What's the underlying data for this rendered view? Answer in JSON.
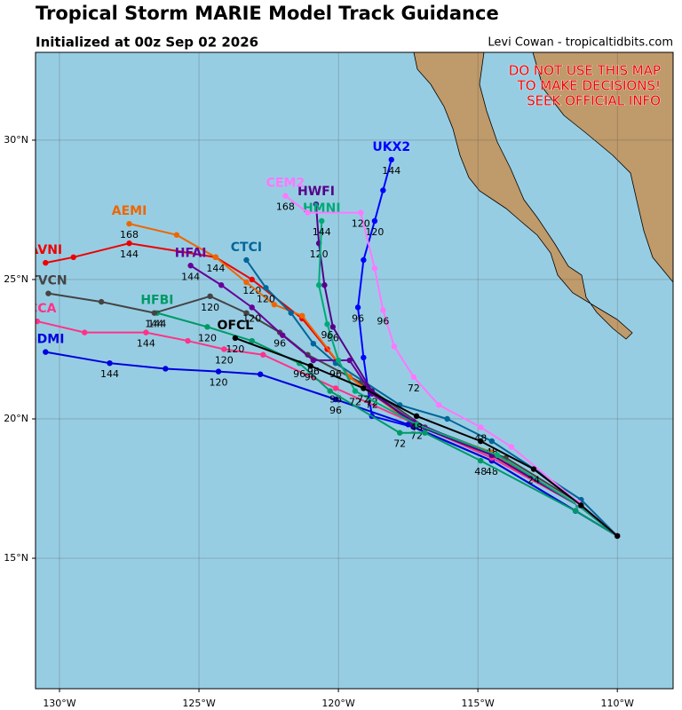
{
  "chart_data": {
    "type": "map",
    "title": "Tropical Storm MARIE Model Track Guidance",
    "subtitle": "Initialized at 00z Sep 02 2026",
    "credit": "Levi Cowan - tropicaltidbits.com",
    "annotation_lines": [
      "DO NOT USE THIS MAP",
      "TO MAKE DECISIONS!",
      "SEEK OFFICIAL INFO"
    ],
    "xlim": [
      -130.86,
      -108
    ],
    "ylim": [
      10.32,
      33.15
    ],
    "xticks": [
      {
        "value": -130,
        "label": "130°W"
      },
      {
        "value": -125,
        "label": "125°W"
      },
      {
        "value": -120,
        "label": "120°W"
      },
      {
        "value": -115,
        "label": "115°W"
      },
      {
        "value": -110,
        "label": "110°W"
      }
    ],
    "yticks": [
      {
        "value": 15,
        "label": "15°N"
      },
      {
        "value": 20,
        "label": "20°N"
      },
      {
        "value": 25,
        "label": "25°N"
      },
      {
        "value": 30,
        "label": "30°N"
      }
    ],
    "grid": true,
    "series": [
      {
        "name": "UKX2",
        "color": "#0000ff",
        "x": [
          -110,
          -111.5,
          -114.5,
          -117.3,
          -118.8,
          -119.1,
          -119.3,
          -119.1,
          -118.7,
          -118.4,
          -118.1
        ],
        "y": [
          15.8,
          16.7,
          18.5,
          19.7,
          20.1,
          22.2,
          24.0,
          25.7,
          27.1,
          28.2,
          29.3
        ],
        "labels": [
          null,
          null,
          null,
          null,
          null,
          null,
          96,
          null,
          120,
          null,
          144
        ]
      },
      {
        "name": "GDMI",
        "color": "#0000dd",
        "x": [
          -110,
          -111.5,
          -114.5,
          -117.5,
          -120.1,
          -122.8,
          -124.3,
          -126.2,
          -128.2,
          -130.5
        ],
        "y": [
          15.8,
          16.7,
          18.5,
          19.8,
          20.7,
          21.6,
          21.7,
          21.8,
          22.0,
          22.4
        ],
        "labels": [
          null,
          null,
          48,
          null,
          96,
          null,
          120,
          null,
          144,
          null
        ]
      },
      {
        "name": "HCCA",
        "color": "#ff3388",
        "x": [
          -110,
          -111.4,
          -114.5,
          -117.2,
          -120.1,
          -122.7,
          -124.1,
          -125.4,
          -126.9,
          -129.1,
          -130.8
        ],
        "y": [
          15.8,
          16.9,
          18.6,
          19.8,
          21.1,
          22.3,
          22.5,
          22.8,
          23.1,
          23.1,
          23.5
        ],
        "labels": [
          null,
          null,
          null,
          72,
          96,
          null,
          120,
          null,
          144,
          null,
          null
        ]
      },
      {
        "name": "HFBI",
        "color": "#009966",
        "x": [
          -110,
          -111.5,
          -114.9,
          -116.9,
          -117.8,
          -120.3,
          -121.4,
          -123.1,
          -124.7,
          -126.5
        ],
        "y": [
          15.8,
          16.7,
          18.5,
          19.5,
          19.5,
          21.0,
          22.0,
          22.8,
          23.3,
          23.8
        ],
        "labels": [
          null,
          null,
          48,
          null,
          72,
          null,
          96,
          null,
          120,
          144
        ]
      },
      {
        "name": "TVCN",
        "color": "#444444",
        "x": [
          -110,
          -111.4,
          -114.0,
          -116.9,
          -119.2,
          -121.1,
          -122.1,
          -123.3,
          -124.6,
          -126.6,
          -128.5,
          -130.4
        ],
        "y": [
          15.8,
          17.0,
          18.6,
          19.7,
          21.3,
          22.3,
          23.1,
          23.8,
          24.4,
          23.8,
          24.2,
          24.5
        ],
        "labels": [
          null,
          null,
          null,
          null,
          null,
          null,
          96,
          null,
          120,
          144,
          null,
          null
        ]
      },
      {
        "name": "AVNI",
        "color": "#ee0000",
        "x": [
          -110,
          -111.4,
          -114.5,
          -117.3,
          -119.6,
          -120.4,
          -121.3,
          -123.1,
          -124.4,
          -127.5,
          -129.5,
          -130.5
        ],
        "y": [
          15.8,
          16.9,
          18.8,
          19.8,
          21.5,
          22.5,
          23.6,
          25.0,
          25.8,
          26.3,
          25.8,
          25.6
        ],
        "labels": [
          null,
          null,
          null,
          null,
          null,
          null,
          null,
          120,
          null,
          144,
          null,
          null
        ]
      },
      {
        "name": "AEMI",
        "color": "#ee6600",
        "x": [
          -110,
          -111.4,
          -114.5,
          -117.3,
          -119.6,
          -121.3,
          -122.3,
          -123.3,
          -124.4,
          -125.8,
          -127.5
        ],
        "y": [
          15.8,
          16.9,
          18.8,
          19.8,
          21.5,
          23.7,
          24.1,
          24.9,
          25.8,
          26.6,
          27.0
        ],
        "labels": [
          null,
          null,
          null,
          null,
          null,
          null,
          null,
          null,
          144,
          null,
          168
        ]
      },
      {
        "name": "CTCI",
        "color": "#006699",
        "x": [
          -110,
          -111.3,
          -114.5,
          -116.1,
          -117.8,
          -120.1,
          -120.9,
          -121.7,
          -122.6,
          -123.3
        ],
        "y": [
          15.8,
          17.1,
          19.2,
          20.0,
          20.5,
          22.0,
          22.7,
          23.8,
          24.7,
          25.7
        ],
        "labels": [
          null,
          null,
          48,
          null,
          null,
          96,
          null,
          null,
          120,
          null
        ]
      },
      {
        "name": "HFAI",
        "color": "#660099",
        "x": [
          -110,
          -111.4,
          -114.5,
          -117.3,
          -118.8,
          -119.6,
          -120.9,
          -122.0,
          -123.1,
          -124.2,
          -125.3
        ],
        "y": [
          15.8,
          16.9,
          18.7,
          19.9,
          20.9,
          22.1,
          22.1,
          23.0,
          24.0,
          24.8,
          25.5
        ],
        "labels": [
          null,
          null,
          null,
          null,
          72,
          null,
          96,
          null,
          120,
          null,
          144
        ]
      },
      {
        "name": "HWFI",
        "color": "#550088",
        "x": [
          -110,
          -111.4,
          -114.5,
          -117.3,
          -118.8,
          -120.2,
          -120.5,
          -120.7,
          -120.8
        ],
        "y": [
          15.8,
          16.9,
          18.7,
          19.8,
          21.0,
          23.3,
          24.8,
          26.3,
          27.7
        ],
        "labels": [
          null,
          null,
          null,
          null,
          72,
          96,
          null,
          120,
          null
        ]
      },
      {
        "name": "HMNI",
        "color": "#00aa77",
        "x": [
          -110,
          -111.4,
          -114.3,
          -117.2,
          -119.4,
          -120.0,
          -120.4,
          -120.7,
          -120.6
        ],
        "y": [
          15.8,
          16.9,
          18.7,
          19.8,
          21.0,
          22.1,
          23.4,
          24.8,
          27.1
        ],
        "labels": [
          null,
          null,
          null,
          null,
          72,
          null,
          96,
          null,
          144
        ]
      },
      {
        "name": "CEM2",
        "color": "#ff77ff",
        "x": [
          -110,
          -111.4,
          -113.8,
          -114.9,
          -116.4,
          -117.3,
          -118.0,
          -118.4,
          -118.7,
          -119.2,
          -121.1,
          -121.9
        ],
        "y": [
          15.8,
          17.0,
          19.0,
          19.7,
          20.5,
          21.5,
          22.6,
          23.9,
          25.4,
          27.4,
          27.4,
          28.0
        ],
        "labels": [
          null,
          null,
          null,
          48,
          null,
          72,
          null,
          96,
          null,
          120,
          null,
          168
        ]
      },
      {
        "name": "OFCL",
        "color": "#000000",
        "x": [
          -110,
          -111.3,
          -113.0,
          -114.9,
          -117.2,
          -119.1,
          -121.0,
          -123.7
        ],
        "y": [
          15.8,
          16.9,
          18.2,
          19.2,
          20.1,
          21.1,
          21.9,
          22.9
        ],
        "labels": [
          null,
          null,
          24,
          null,
          48,
          72,
          96,
          120
        ]
      }
    ]
  }
}
